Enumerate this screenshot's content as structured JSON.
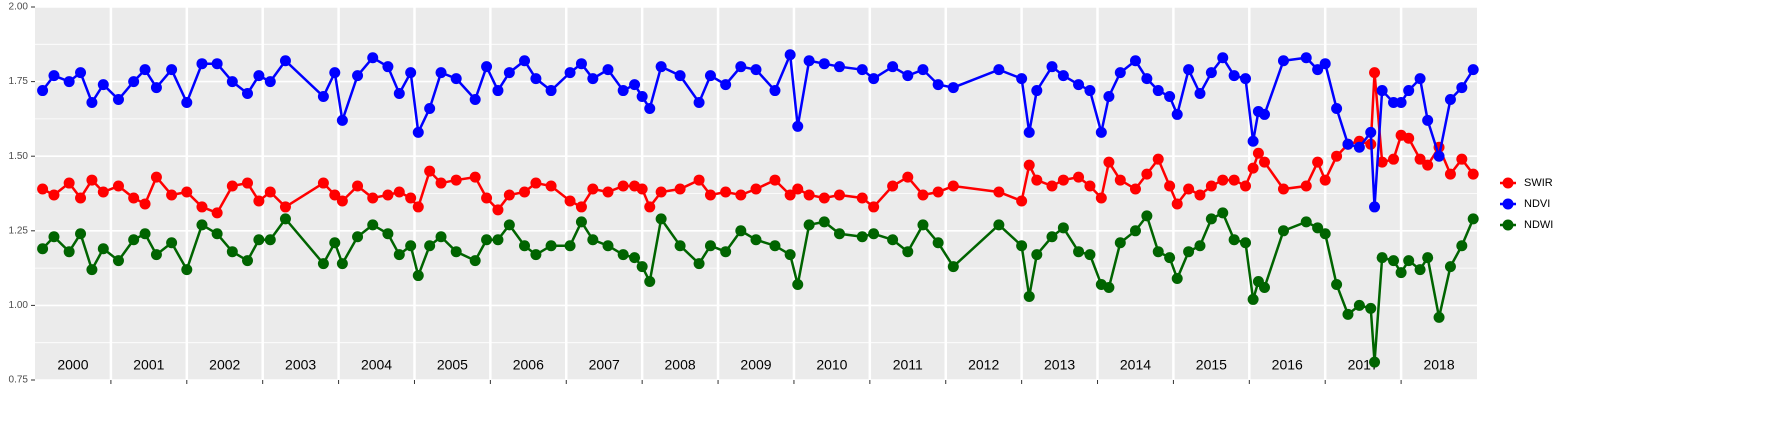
{
  "chart_data": {
    "type": "line",
    "x": [
      2000.1,
      2000.25,
      2000.45,
      2000.6,
      2000.75,
      2000.9,
      2001.1,
      2001.3,
      2001.45,
      2001.6,
      2001.8,
      2002.0,
      2002.2,
      2002.4,
      2002.6,
      2002.8,
      2002.95,
      2003.1,
      2003.3,
      2003.8,
      2003.95,
      2004.05,
      2004.25,
      2004.45,
      2004.65,
      2004.8,
      2004.95,
      2005.05,
      2005.2,
      2005.35,
      2005.55,
      2005.8,
      2005.95,
      2006.1,
      2006.25,
      2006.45,
      2006.6,
      2006.8,
      2007.05,
      2007.2,
      2007.35,
      2007.55,
      2007.75,
      2007.9,
      2008.0,
      2008.1,
      2008.25,
      2008.5,
      2008.75,
      2008.9,
      2009.1,
      2009.3,
      2009.5,
      2009.75,
      2009.95,
      2010.05,
      2010.2,
      2010.4,
      2010.6,
      2010.9,
      2011.05,
      2011.3,
      2011.5,
      2011.7,
      2011.9,
      2012.1,
      2012.7,
      2013.0,
      2013.1,
      2013.2,
      2013.4,
      2013.55,
      2013.75,
      2013.9,
      2014.05,
      2014.15,
      2014.3,
      2014.5,
      2014.65,
      2014.8,
      2014.95,
      2015.05,
      2015.2,
      2015.35,
      2015.5,
      2015.65,
      2015.8,
      2015.95,
      2016.05,
      2016.12,
      2016.2,
      2016.45,
      2016.75,
      2016.9,
      2017.0,
      2017.15,
      2017.3,
      2017.45,
      2017.6,
      2017.65,
      2017.75,
      2017.9,
      2018.0,
      2018.1,
      2018.25,
      2018.35,
      2018.5,
      2018.65,
      2018.8,
      2018.95
    ],
    "series": [
      {
        "name": "SWIR",
        "color": "#ff0000",
        "values": [
          1.39,
          1.37,
          1.41,
          1.36,
          1.42,
          1.38,
          1.4,
          1.36,
          1.34,
          1.43,
          1.37,
          1.38,
          1.33,
          1.31,
          1.4,
          1.41,
          1.35,
          1.38,
          1.33,
          1.41,
          1.37,
          1.35,
          1.4,
          1.36,
          1.37,
          1.38,
          1.36,
          1.33,
          1.45,
          1.41,
          1.42,
          1.43,
          1.36,
          1.32,
          1.37,
          1.38,
          1.41,
          1.4,
          1.35,
          1.33,
          1.39,
          1.38,
          1.4,
          1.4,
          1.39,
          1.33,
          1.38,
          1.39,
          1.42,
          1.37,
          1.38,
          1.37,
          1.39,
          1.42,
          1.37,
          1.39,
          1.37,
          1.36,
          1.37,
          1.36,
          1.33,
          1.4,
          1.43,
          1.37,
          1.38,
          1.4,
          1.38,
          1.35,
          1.47,
          1.42,
          1.4,
          1.42,
          1.43,
          1.4,
          1.36,
          1.48,
          1.42,
          1.39,
          1.44,
          1.49,
          1.4,
          1.34,
          1.39,
          1.37,
          1.4,
          1.42,
          1.42,
          1.4,
          1.46,
          1.51,
          1.48,
          1.39,
          1.4,
          1.48,
          1.42,
          1.5,
          1.54,
          1.55,
          1.54,
          1.78,
          1.48,
          1.49,
          1.57,
          1.56,
          1.49,
          1.47,
          1.53,
          1.44,
          1.49,
          1.44
        ]
      },
      {
        "name": "NDVI",
        "color": "#0000ff",
        "values": [
          1.72,
          1.77,
          1.75,
          1.78,
          1.68,
          1.74,
          1.69,
          1.75,
          1.79,
          1.73,
          1.79,
          1.68,
          1.81,
          1.81,
          1.75,
          1.71,
          1.77,
          1.75,
          1.82,
          1.7,
          1.78,
          1.62,
          1.77,
          1.83,
          1.8,
          1.71,
          1.78,
          1.58,
          1.66,
          1.78,
          1.76,
          1.69,
          1.8,
          1.72,
          1.78,
          1.82,
          1.76,
          1.72,
          1.78,
          1.81,
          1.76,
          1.79,
          1.72,
          1.74,
          1.7,
          1.66,
          1.8,
          1.77,
          1.68,
          1.77,
          1.74,
          1.8,
          1.79,
          1.72,
          1.84,
          1.6,
          1.82,
          1.81,
          1.8,
          1.79,
          1.76,
          1.8,
          1.77,
          1.79,
          1.74,
          1.73,
          1.79,
          1.76,
          1.58,
          1.72,
          1.8,
          1.77,
          1.74,
          1.72,
          1.58,
          1.7,
          1.78,
          1.82,
          1.76,
          1.72,
          1.7,
          1.64,
          1.79,
          1.71,
          1.78,
          1.83,
          1.77,
          1.76,
          1.55,
          1.65,
          1.64,
          1.82,
          1.83,
          1.79,
          1.81,
          1.66,
          1.54,
          1.53,
          1.58,
          1.33,
          1.72,
          1.68,
          1.68,
          1.72,
          1.76,
          1.62,
          1.5,
          1.69,
          1.73,
          1.79
        ]
      },
      {
        "name": "NDWI",
        "color": "#006400",
        "values": [
          1.19,
          1.23,
          1.18,
          1.24,
          1.12,
          1.19,
          1.15,
          1.22,
          1.24,
          1.17,
          1.21,
          1.12,
          1.27,
          1.24,
          1.18,
          1.15,
          1.22,
          1.22,
          1.29,
          1.14,
          1.21,
          1.14,
          1.23,
          1.27,
          1.24,
          1.17,
          1.2,
          1.1,
          1.2,
          1.23,
          1.18,
          1.15,
          1.22,
          1.22,
          1.27,
          1.2,
          1.17,
          1.2,
          1.2,
          1.28,
          1.22,
          1.2,
          1.17,
          1.16,
          1.13,
          1.08,
          1.29,
          1.2,
          1.14,
          1.2,
          1.18,
          1.25,
          1.22,
          1.2,
          1.17,
          1.07,
          1.27,
          1.28,
          1.24,
          1.23,
          1.24,
          1.22,
          1.18,
          1.27,
          1.21,
          1.13,
          1.27,
          1.2,
          1.03,
          1.17,
          1.23,
          1.26,
          1.18,
          1.17,
          1.07,
          1.06,
          1.21,
          1.25,
          1.3,
          1.18,
          1.16,
          1.09,
          1.18,
          1.2,
          1.29,
          1.31,
          1.22,
          1.21,
          1.02,
          1.08,
          1.06,
          1.25,
          1.28,
          1.26,
          1.24,
          1.07,
          0.97,
          1.0,
          0.99,
          0.81,
          1.16,
          1.15,
          1.11,
          1.15,
          1.12,
          1.16,
          0.96,
          1.13,
          1.2,
          1.29
        ]
      }
    ],
    "xlim": [
      2000,
      2019
    ],
    "xticks": [
      {
        "value": 2000.5,
        "label": "2000"
      },
      {
        "value": 2001.5,
        "label": "2001"
      },
      {
        "value": 2002.5,
        "label": "2002"
      },
      {
        "value": 2003.5,
        "label": "2003"
      },
      {
        "value": 2004.5,
        "label": "2004"
      },
      {
        "value": 2005.5,
        "label": "2005"
      },
      {
        "value": 2006.5,
        "label": "2006"
      },
      {
        "value": 2007.5,
        "label": "2007"
      },
      {
        "value": 2008.5,
        "label": "2008"
      },
      {
        "value": 2009.5,
        "label": "2009"
      },
      {
        "value": 2010.5,
        "label": "2010"
      },
      {
        "value": 2011.5,
        "label": "2011"
      },
      {
        "value": 2012.5,
        "label": "2012"
      },
      {
        "value": 2013.5,
        "label": "2013"
      },
      {
        "value": 2014.5,
        "label": "2014"
      },
      {
        "value": 2015.5,
        "label": "2015"
      },
      {
        "value": 2016.5,
        "label": "2016"
      },
      {
        "value": 2017.5,
        "label": "2017"
      },
      {
        "value": 2018.5,
        "label": "2018"
      }
    ],
    "x_boundaries": [
      2001,
      2002,
      2003,
      2004,
      2005,
      2006,
      2007,
      2008,
      2009,
      2010,
      2011,
      2012,
      2013,
      2014,
      2015,
      2016,
      2017,
      2018
    ],
    "ylim": [
      0.75,
      2.0
    ],
    "yticks": [
      {
        "value": 0.75,
        "label": "0.75"
      },
      {
        "value": 1.0,
        "label": "1.00"
      },
      {
        "value": 1.25,
        "label": "1.25"
      },
      {
        "value": 1.5,
        "label": "1.50"
      },
      {
        "value": 1.75,
        "label": "1.75"
      },
      {
        "value": 2.0,
        "label": "2.00"
      }
    ],
    "y_minor_grid": [
      0.875,
      1.125,
      1.375,
      1.625,
      1.875
    ],
    "grid": true,
    "legend": "right"
  }
}
